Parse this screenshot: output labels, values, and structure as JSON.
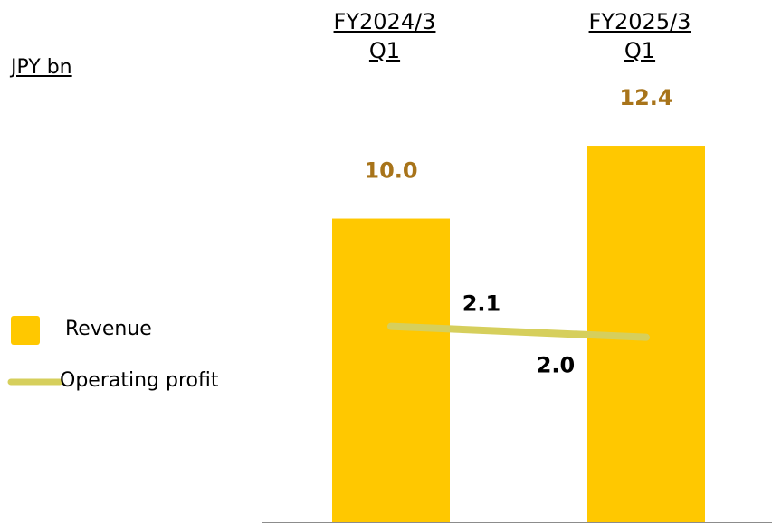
{
  "chart_data": {
    "type": "bar",
    "unit": "JPY bn",
    "categories": [
      "FY2024/3 Q1",
      "FY2025/3 Q1"
    ],
    "ylim": [
      0,
      17.2
    ],
    "y2lim": [
      0.3,
      5.1
    ],
    "series": [
      {
        "name": "Revenue",
        "type": "bar",
        "color": "#ffc800",
        "label_color": "#a8741a",
        "values": [
          10.0,
          12.4
        ],
        "value_labels": [
          "10.0",
          "12.4"
        ]
      },
      {
        "name": "Operating profit",
        "type": "line",
        "axis": "y2",
        "color": "#d6cf5c",
        "label_color": "#000000",
        "values": [
          2.1,
          2.0
        ],
        "value_labels": [
          "2.1",
          "2.0"
        ]
      }
    ]
  }
}
